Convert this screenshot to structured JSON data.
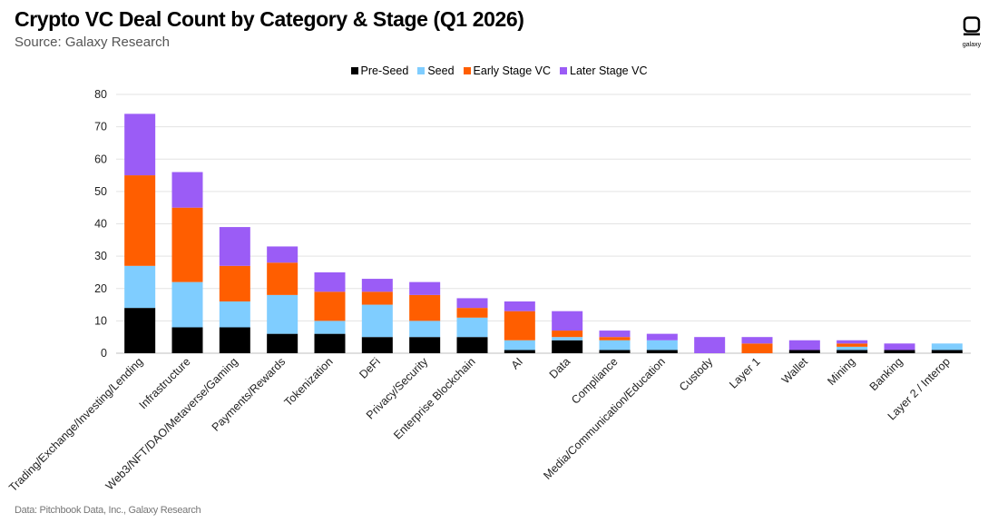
{
  "header": {
    "title": "Crypto VC Deal Count by Category & Stage (Q1 2026)",
    "subtitle": "Source: Galaxy Research",
    "logo_text": "galaxy"
  },
  "footer": {
    "note": "Data: Pitchbook Data, Inc., Galaxy Research"
  },
  "chart_data": {
    "type": "bar",
    "stacked": true,
    "title": "Crypto VC Deal Count by Category & Stage (Q1 2026)",
    "subtitle": "Source: Galaxy Research",
    "xlabel": "",
    "ylabel": "",
    "ylim": [
      0,
      80
    ],
    "yticks": [
      0,
      10,
      20,
      30,
      40,
      50,
      60,
      70,
      80
    ],
    "grid": "horizontal",
    "legend_position": "top-center",
    "categories": [
      "Trading/Exchange/Investing/Lending",
      "Infrastructure",
      "Web3/NFT/DAO/Metaverse/Gaming",
      "Payments/Rewards",
      "Tokenization",
      "DeFi",
      "Privacy/Security",
      "Enterprise Blockchain",
      "AI",
      "Data",
      "Compliance",
      "Media/Communication/Education",
      "Custody",
      "Layer 1",
      "Wallet",
      "Mining",
      "Banking",
      "Layer 2 / Interop"
    ],
    "series": [
      {
        "name": "Pre-Seed",
        "color": "#000000",
        "values": [
          14,
          8,
          8,
          6,
          6,
          5,
          5,
          5,
          1,
          4,
          1,
          1,
          0,
          0,
          1,
          1,
          1,
          1
        ]
      },
      {
        "name": "Seed",
        "color": "#7fcdff",
        "values": [
          13,
          14,
          8,
          12,
          4,
          10,
          5,
          6,
          3,
          1,
          3,
          3,
          0,
          0,
          0,
          1,
          0,
          2
        ]
      },
      {
        "name": "Early Stage VC",
        "color": "#ff5e00",
        "values": [
          28,
          23,
          11,
          10,
          9,
          4,
          8,
          3,
          9,
          2,
          1,
          0,
          0,
          3,
          0,
          1,
          0,
          0
        ]
      },
      {
        "name": "Later Stage VC",
        "color": "#9b5cf6",
        "values": [
          19,
          11,
          12,
          5,
          6,
          4,
          4,
          3,
          3,
          6,
          2,
          2,
          5,
          2,
          3,
          1,
          2,
          0
        ]
      }
    ]
  }
}
